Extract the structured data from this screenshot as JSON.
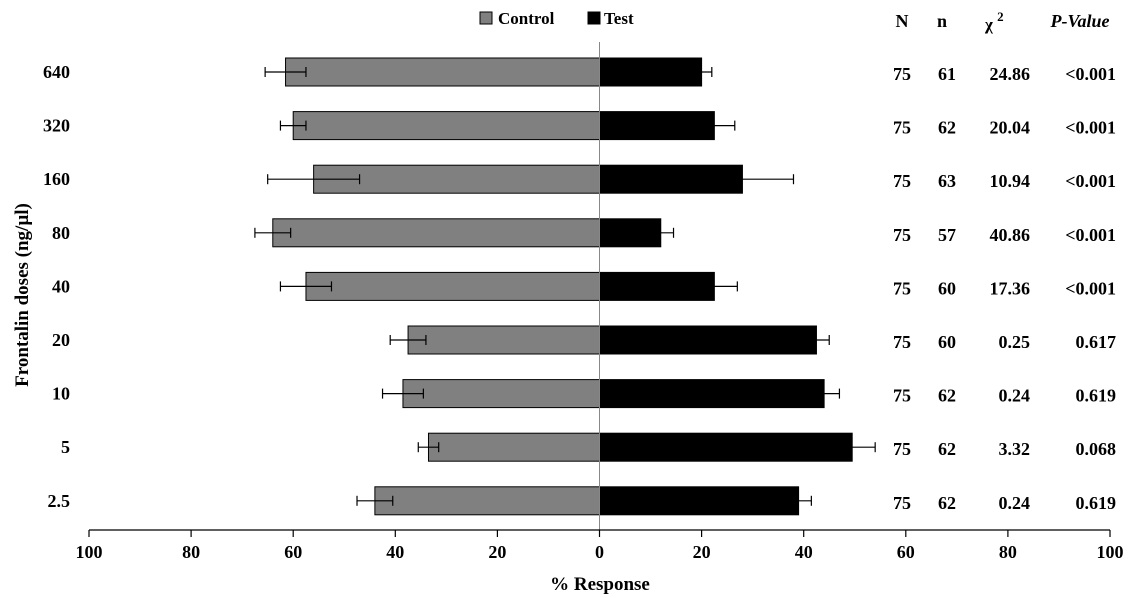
{
  "chart_data": {
    "type": "bar",
    "orientation": "horizontal-diverging",
    "ylabel": "Frontalin doses (ng/µl)",
    "xlabel": "% Response",
    "xlim": [
      -100,
      100
    ],
    "xticks": [
      -100,
      -80,
      -60,
      -40,
      -20,
      0,
      20,
      40,
      60,
      80,
      100
    ],
    "xtick_labels": [
      "100",
      "80",
      "60",
      "40",
      "20",
      "0",
      "20",
      "40",
      "60",
      "80",
      "100"
    ],
    "categories": [
      "640",
      "320",
      "160",
      "80",
      "40",
      "20",
      "10",
      "5",
      "2.5"
    ],
    "series": [
      {
        "name": "Control",
        "color": "#808080",
        "values": [
          61.5,
          60,
          56,
          64,
          57.5,
          37.5,
          38.5,
          33.5,
          44
        ],
        "error": [
          4,
          2.5,
          9,
          3.5,
          5,
          3.5,
          4,
          2,
          3.5
        ]
      },
      {
        "name": "Test",
        "color": "#000000",
        "values": [
          20,
          22.5,
          28,
          12,
          22.5,
          42.5,
          44,
          49.5,
          39
        ],
        "error": [
          2,
          4,
          10,
          2.5,
          4.5,
          2.5,
          3,
          4.5,
          2.5
        ]
      }
    ],
    "legend_position": "top-center",
    "grid": false,
    "stats_table": {
      "headers": {
        "N": "N",
        "n": "n",
        "chi": "χ",
        "chi_sup": "2",
        "p": "P-Value"
      },
      "rows": [
        {
          "N": "75",
          "n": "61",
          "chi2": "24.86",
          "p": "<0.001"
        },
        {
          "N": "75",
          "n": "62",
          "chi2": "20.04",
          "p": "<0.001"
        },
        {
          "N": "75",
          "n": "63",
          "chi2": "10.94",
          "p": "<0.001"
        },
        {
          "N": "75",
          "n": "57",
          "chi2": "40.86",
          "p": "<0.001"
        },
        {
          "N": "75",
          "n": "60",
          "chi2": "17.36",
          "p": "<0.001"
        },
        {
          "N": "75",
          "n": "60",
          "chi2": "0.25",
          "p": "0.617"
        },
        {
          "N": "75",
          "n": "62",
          "chi2": "0.24",
          "p": "0.619"
        },
        {
          "N": "75",
          "n": "62",
          "chi2": "3.32",
          "p": "0.068"
        },
        {
          "N": "75",
          "n": "62",
          "chi2": "0.24",
          "p": "0.619"
        }
      ]
    }
  }
}
